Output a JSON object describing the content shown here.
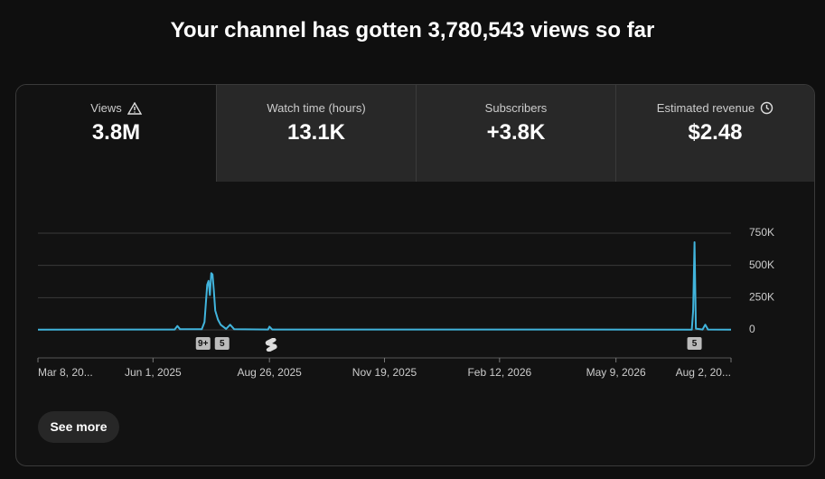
{
  "header": {
    "title": "Your channel has gotten 3,780,543 views so far"
  },
  "tabs": [
    {
      "label": "Views",
      "value": "3.8M"
    },
    {
      "label": "Watch time (hours)",
      "value": "13.1K"
    },
    {
      "label": "Subscribers",
      "value": "+3.8K"
    },
    {
      "label": "Estimated revenue",
      "value": "$2.48"
    }
  ],
  "chart_data": {
    "type": "line",
    "xlim": [
      "2025-03-08",
      "2026-08-02"
    ],
    "xticks": [
      {
        "value": "2025-03-08",
        "label": "Mar 8, 20..."
      },
      {
        "value": "2025-06-01",
        "label": "Jun 1, 2025"
      },
      {
        "value": "2025-08-26",
        "label": "Aug 26, 2025"
      },
      {
        "value": "2025-11-19",
        "label": "Nov 19, 2025"
      },
      {
        "value": "2026-02-12",
        "label": "Feb 12, 2026"
      },
      {
        "value": "2026-05-09",
        "label": "May 9, 2026"
      },
      {
        "value": "2026-08-02",
        "label": "Aug 2, 20..."
      }
    ],
    "ylim": [
      0,
      750000
    ],
    "yticks": [
      {
        "value": 0,
        "label": "0"
      },
      {
        "value": 250000,
        "label": "250K"
      },
      {
        "value": 500000,
        "label": "500K"
      },
      {
        "value": 750000,
        "label": "750K"
      }
    ],
    "grid": true,
    "x": [
      "2025-03-08",
      "2025-06-17",
      "2025-06-19",
      "2025-06-21",
      "2025-07-07",
      "2025-07-09",
      "2025-07-11",
      "2025-07-12",
      "2025-07-13",
      "2025-07-14",
      "2025-07-15",
      "2025-07-16",
      "2025-07-17",
      "2025-07-19",
      "2025-07-21",
      "2025-07-25",
      "2025-07-28",
      "2025-07-31",
      "2025-08-25",
      "2025-08-26",
      "2025-08-28",
      "2026-07-04",
      "2026-07-05",
      "2026-07-06",
      "2026-07-07",
      "2026-07-12",
      "2026-07-14",
      "2026-07-16",
      "2026-08-02"
    ],
    "series": [
      {
        "name": "Views",
        "color": "#41b4dc",
        "values": [
          2000,
          3000,
          30000,
          5000,
          5000,
          60000,
          350000,
          380000,
          270000,
          440000,
          430000,
          300000,
          150000,
          80000,
          40000,
          8000,
          40000,
          5000,
          3000,
          25000,
          3000,
          2000,
          150000,
          680000,
          10000,
          3000,
          40000,
          3000,
          2000
        ]
      }
    ],
    "annotations": [
      {
        "x": "2025-07-08",
        "label": "9+"
      },
      {
        "x": "2025-07-22",
        "label": "5"
      },
      {
        "x": "2026-07-06",
        "label": "5"
      }
    ]
  },
  "button": "See more"
}
